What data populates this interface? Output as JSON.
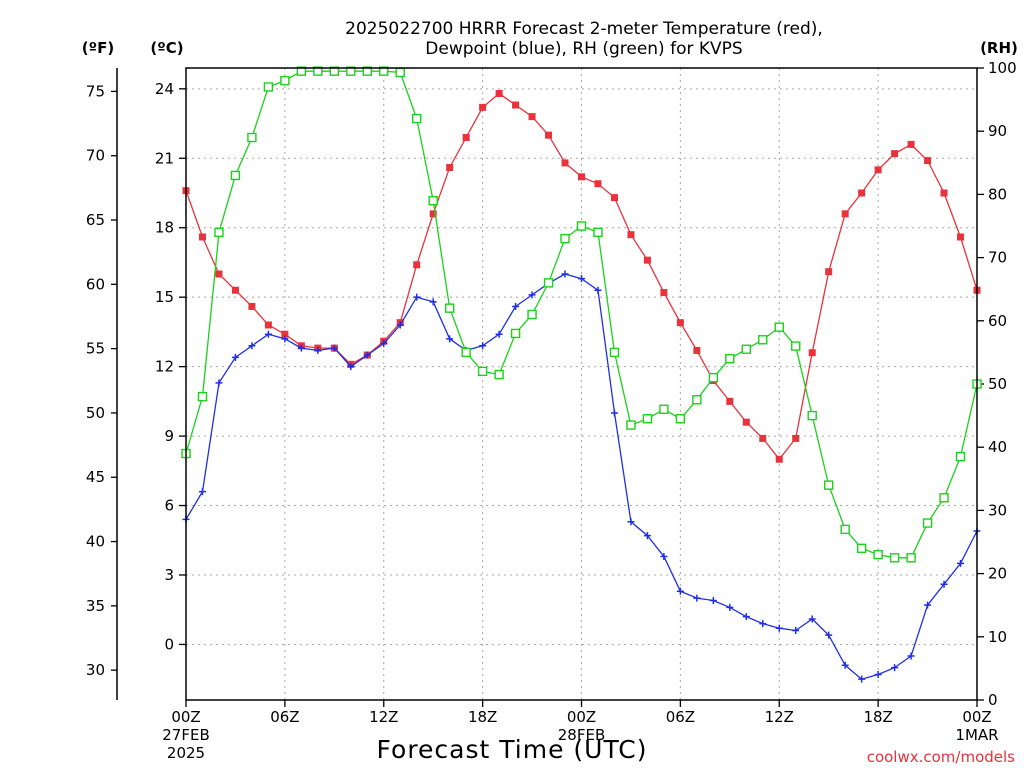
{
  "chart_data": {
    "type": "line",
    "title_line1": "2025022700 HRRR Forecast 2-meter Temperature (red),",
    "title_line2": "Dewpoint (blue), RH (green) for KVPS",
    "xlabel": "Forecast Time (UTC)",
    "credit": "coolwx.com/models",
    "units": {
      "fahrenheit": "(ºF)",
      "celsius": "(ºC)",
      "rh": "(RH)"
    },
    "xlim": [
      0,
      48
    ],
    "ylim_celsius": [
      -2.4,
      24.9
    ],
    "ylim_rh": [
      0,
      100
    ],
    "grid": true,
    "x_ticks": [
      {
        "x": 0,
        "lines": [
          "00Z",
          "27FEB",
          "2025"
        ]
      },
      {
        "x": 6,
        "lines": [
          "06Z"
        ]
      },
      {
        "x": 12,
        "lines": [
          "12Z"
        ]
      },
      {
        "x": 18,
        "lines": [
          "18Z"
        ]
      },
      {
        "x": 24,
        "lines": [
          "00Z",
          "28FEB"
        ]
      },
      {
        "x": 30,
        "lines": [
          "06Z"
        ]
      },
      {
        "x": 36,
        "lines": [
          "12Z"
        ]
      },
      {
        "x": 42,
        "lines": [
          "18Z"
        ]
      },
      {
        "x": 48,
        "lines": [
          "00Z",
          "1MAR"
        ]
      }
    ],
    "celsius_ticks": [
      0,
      3,
      6,
      9,
      12,
      15,
      18,
      21,
      24
    ],
    "fahrenheit_ticks": [
      30,
      35,
      40,
      45,
      50,
      55,
      60,
      65,
      70,
      75
    ],
    "rh_ticks": [
      0,
      10,
      20,
      30,
      40,
      50,
      60,
      70,
      80,
      90,
      100
    ],
    "colors": {
      "temperature": "#e8323c",
      "dewpoint": "#1f2fe6",
      "rh": "#1ad21a"
    },
    "x": [
      0,
      1,
      2,
      3,
      4,
      5,
      6,
      7,
      8,
      9,
      10,
      11,
      12,
      13,
      14,
      15,
      16,
      17,
      18,
      19,
      20,
      21,
      22,
      23,
      24,
      25,
      26,
      27,
      28,
      29,
      30,
      31,
      32,
      33,
      34,
      35,
      36,
      37,
      38,
      39,
      40,
      41,
      42,
      43,
      44,
      45,
      46,
      47,
      48
    ],
    "series": [
      {
        "name": "Temperature",
        "axis": "celsius",
        "marker": "square-filled",
        "values": [
          19.6,
          17.6,
          16.0,
          15.3,
          14.6,
          13.8,
          13.4,
          12.9,
          12.8,
          12.8,
          12.1,
          12.5,
          13.1,
          13.9,
          16.4,
          18.6,
          20.6,
          21.9,
          23.2,
          23.8,
          23.3,
          22.8,
          22.0,
          20.8,
          20.2,
          19.9,
          19.3,
          17.7,
          16.6,
          15.2,
          13.9,
          12.7,
          11.4,
          10.5,
          9.6,
          8.9,
          8.0,
          8.9,
          12.6,
          16.1,
          18.6,
          19.5,
          20.5,
          21.2,
          21.6,
          20.9,
          19.5,
          17.6,
          15.3
        ]
      },
      {
        "name": "Dewpoint",
        "axis": "celsius",
        "marker": "plus",
        "values": [
          5.4,
          6.6,
          11.3,
          12.4,
          12.9,
          13.4,
          13.2,
          12.8,
          12.7,
          12.8,
          12.0,
          12.5,
          13.0,
          13.8,
          15.0,
          14.8,
          13.2,
          12.7,
          12.9,
          13.4,
          14.6,
          15.1,
          15.6,
          16.0,
          15.8,
          15.3,
          10.0,
          5.3,
          4.7,
          3.8,
          2.3,
          2.0,
          1.9,
          1.6,
          1.2,
          0.9,
          0.7,
          0.6,
          1.1,
          0.4,
          -0.9,
          -1.5,
          -1.3,
          -1.0,
          -0.5,
          1.7,
          2.6,
          3.5,
          4.9
        ]
      },
      {
        "name": "RH",
        "axis": "rh",
        "marker": "square-open",
        "values": [
          39,
          48,
          74,
          83,
          89,
          97,
          98,
          99.5,
          99.5,
          99.5,
          99.5,
          99.5,
          99.5,
          99.3,
          92,
          79,
          62,
          55,
          52,
          51.5,
          58,
          61,
          66,
          73,
          75,
          74,
          55,
          43.5,
          44.5,
          46,
          44.5,
          47.5,
          51,
          54,
          55.5,
          57,
          59,
          56,
          45,
          34,
          27,
          24,
          23,
          22.5,
          22.5,
          28,
          32,
          38.5,
          50
        ]
      }
    ]
  }
}
